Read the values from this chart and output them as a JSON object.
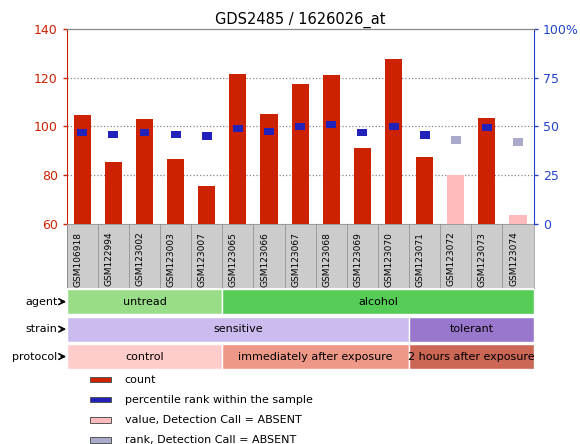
{
  "title": "GDS2485 / 1626026_at",
  "samples": [
    "GSM106918",
    "GSM122994",
    "GSM123002",
    "GSM123003",
    "GSM123007",
    "GSM123065",
    "GSM123066",
    "GSM123067",
    "GSM123068",
    "GSM123069",
    "GSM123070",
    "GSM123071",
    "GSM123072",
    "GSM123073",
    "GSM123074"
  ],
  "count_values": [
    104.5,
    85.5,
    103.0,
    86.5,
    75.5,
    121.5,
    105.0,
    117.5,
    121.0,
    91.0,
    127.5,
    87.5,
    null,
    103.5,
    null
  ],
  "count_absent": [
    null,
    null,
    null,
    null,
    null,
    null,
    null,
    null,
    null,
    null,
    null,
    null,
    80.0,
    null,
    63.5
  ],
  "rank_values": [
    47.0,
    46.0,
    47.0,
    46.0,
    45.0,
    49.0,
    47.5,
    50.0,
    51.0,
    47.0,
    50.0,
    45.5,
    null,
    49.5,
    null
  ],
  "rank_absent": [
    null,
    null,
    null,
    null,
    null,
    null,
    null,
    null,
    null,
    null,
    null,
    null,
    43.0,
    null,
    42.0
  ],
  "ylim_left": [
    60,
    140
  ],
  "ylim_right": [
    0,
    100
  ],
  "left_ticks": [
    60,
    80,
    100,
    120,
    140
  ],
  "right_ticks": [
    0,
    25,
    50,
    75,
    100
  ],
  "right_tick_labels": [
    "0",
    "25",
    "50",
    "75",
    "100%"
  ],
  "bar_color": "#cc2200",
  "bar_absent_color": "#ffbbbb",
  "rank_color": "#2222bb",
  "rank_absent_color": "#aaaacc",
  "agent_groups": [
    {
      "label": "untread",
      "start": 0,
      "end": 5,
      "color": "#99dd88"
    },
    {
      "label": "alcohol",
      "start": 5,
      "end": 15,
      "color": "#55cc55"
    }
  ],
  "strain_groups": [
    {
      "label": "sensitive",
      "start": 0,
      "end": 11,
      "color": "#ccbbee"
    },
    {
      "label": "tolerant",
      "start": 11,
      "end": 15,
      "color": "#9977cc"
    }
  ],
  "protocol_groups": [
    {
      "label": "control",
      "start": 0,
      "end": 5,
      "color": "#ffcccc"
    },
    {
      "label": "immediately after exposure",
      "start": 5,
      "end": 11,
      "color": "#ee9988"
    },
    {
      "label": "2 hours after exposure",
      "start": 11,
      "end": 15,
      "color": "#cc6655"
    }
  ],
  "legend_items": [
    {
      "label": "count",
      "color": "#cc2200"
    },
    {
      "label": "percentile rank within the sample",
      "color": "#2222bb"
    },
    {
      "label": "value, Detection Call = ABSENT",
      "color": "#ffbbbb"
    },
    {
      "label": "rank, Detection Call = ABSENT",
      "color": "#aaaacc"
    }
  ],
  "grid_dotted_values": [
    80,
    100,
    120
  ],
  "grid_color": "#888888",
  "axis_left_color": "#cc2200",
  "axis_right_color": "#2244cc",
  "xtick_bg_color": "#cccccc",
  "xtick_sep_color": "#888888"
}
